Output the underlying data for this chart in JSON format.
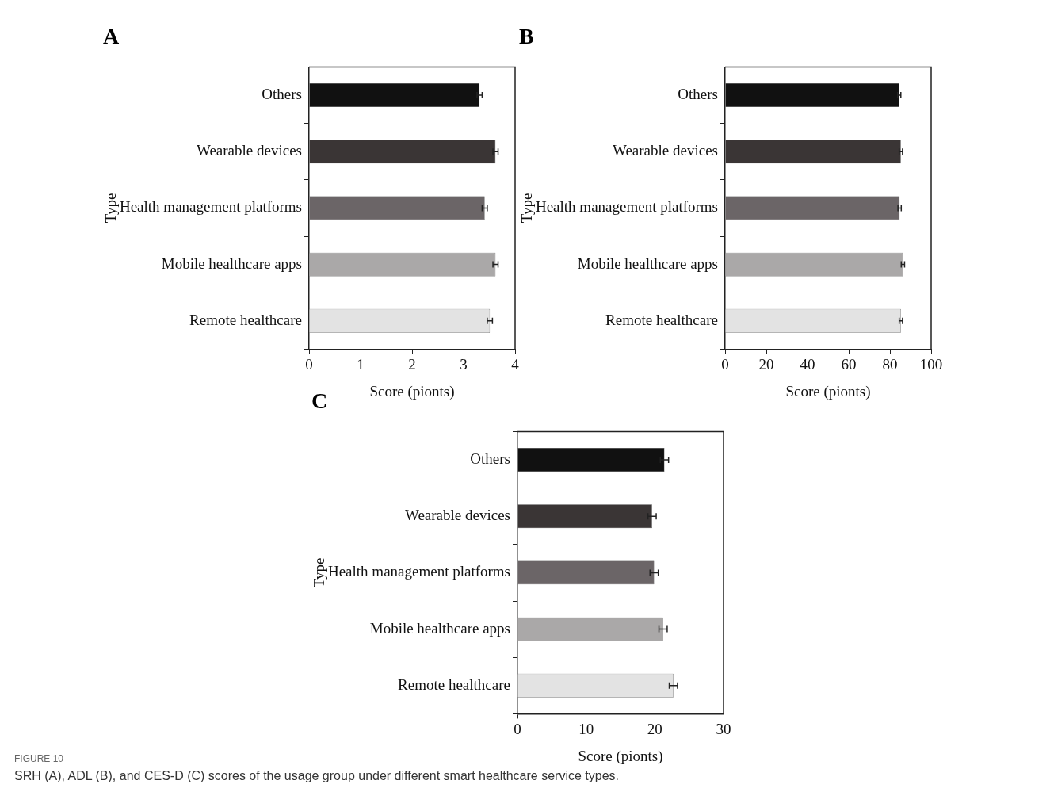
{
  "chart_data": [
    {
      "type": "bar",
      "orientation": "horizontal",
      "title": "A",
      "xlabel": "Score (pionts)",
      "ylabel": "Type",
      "categories": [
        "Others",
        "Wearable devices",
        "Health management platforms",
        "Mobile healthcare apps",
        "Remote healthcare"
      ],
      "values": [
        3.31,
        3.62,
        3.41,
        3.62,
        3.51
      ],
      "errors": [
        0.05,
        0.05,
        0.05,
        0.05,
        0.05
      ],
      "colors": [
        "#111111",
        "#3a3535",
        "#6b6567",
        "#aaa8a8",
        "#e3e3e3"
      ],
      "xlim": [
        0,
        4
      ],
      "xticks": [
        0,
        1,
        2,
        3,
        4
      ],
      "legend": false,
      "annotations": [
        "FIGURE 10",
        "SRH (A), ADL (B), and CES-D (C) scores of the usage group under different smart healthcare service types."
      ]
    },
    {
      "type": "bar",
      "orientation": "horizontal",
      "title": "B",
      "xlabel": "Score (pionts)",
      "ylabel": "Type",
      "categories": [
        "Others",
        "Wearable devices",
        "Health management platforms",
        "Mobile healthcare apps",
        "Remote healthcare"
      ],
      "values": [
        84.5,
        85.3,
        84.7,
        86.3,
        85.3
      ],
      "errors": [
        0.8,
        0.8,
        0.8,
        0.8,
        0.8
      ],
      "colors": [
        "#111111",
        "#3a3535",
        "#6b6567",
        "#aaa8a8",
        "#e3e3e3"
      ],
      "xlim": [
        0,
        100
      ],
      "xticks": [
        0,
        20,
        40,
        60,
        80,
        100
      ],
      "legend": false
    },
    {
      "type": "bar",
      "orientation": "horizontal",
      "title": "C",
      "xlabel": "Score (pionts)",
      "ylabel": "Type",
      "categories": [
        "Others",
        "Wearable devices",
        "Health management platforms",
        "Mobile healthcare apps",
        "Remote healthcare"
      ],
      "values": [
        21.4,
        19.6,
        19.9,
        21.2,
        22.7
      ],
      "errors": [
        0.6,
        0.6,
        0.6,
        0.6,
        0.6
      ],
      "colors": [
        "#111111",
        "#3a3535",
        "#6b6567",
        "#aaa8a8",
        "#e3e3e3"
      ],
      "xlim": [
        0,
        30
      ],
      "xticks": [
        0,
        10,
        20,
        30
      ],
      "legend": false
    }
  ]
}
